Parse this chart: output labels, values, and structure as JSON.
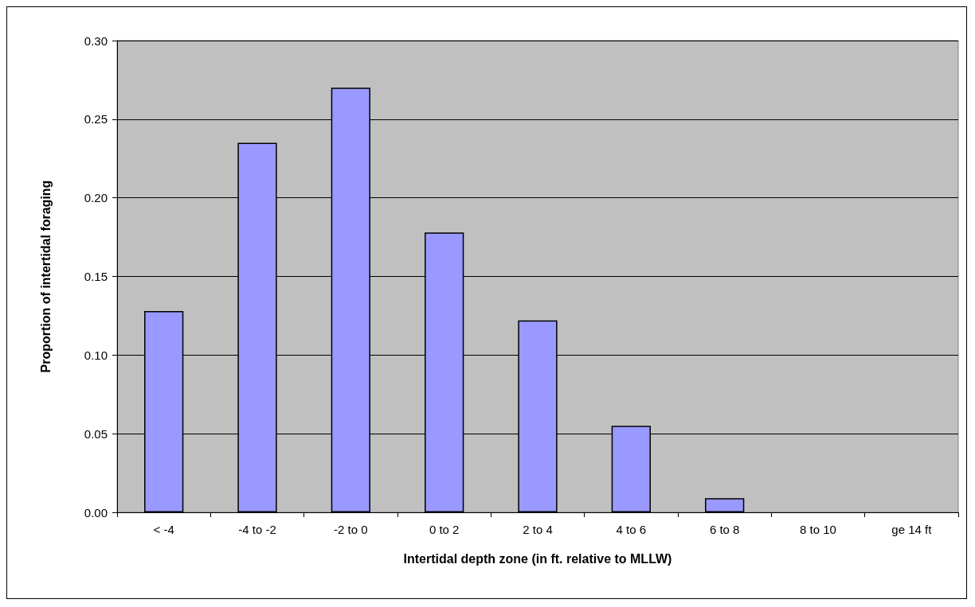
{
  "chart_data": {
    "type": "bar",
    "xlabel": "Intertidal depth zone (in ft. relative to MLLW)",
    "ylabel": "Proportion of intertidal foraging",
    "categories": [
      "< -4",
      "-4 to -2",
      "-2 to 0",
      "0 to 2",
      "2 to 4",
      "4 to 6",
      "6 to 8",
      "8 to 10",
      "ge 14 ft"
    ],
    "values": [
      0.128,
      0.235,
      0.27,
      0.178,
      0.122,
      0.055,
      0.009,
      0,
      0
    ],
    "color": "#9999ff",
    "ylim": [
      0,
      0.3
    ],
    "yticks": [
      {
        "value": 0,
        "label": "0.00"
      },
      {
        "value": 0.05,
        "label": "0.05"
      },
      {
        "value": 0.1,
        "label": "0.10"
      },
      {
        "value": 0.15,
        "label": "0.15"
      },
      {
        "value": 0.2,
        "label": "0.20"
      },
      {
        "value": 0.25,
        "label": "0.25"
      },
      {
        "value": 0.3,
        "label": "0.30"
      }
    ],
    "grid": "y"
  }
}
